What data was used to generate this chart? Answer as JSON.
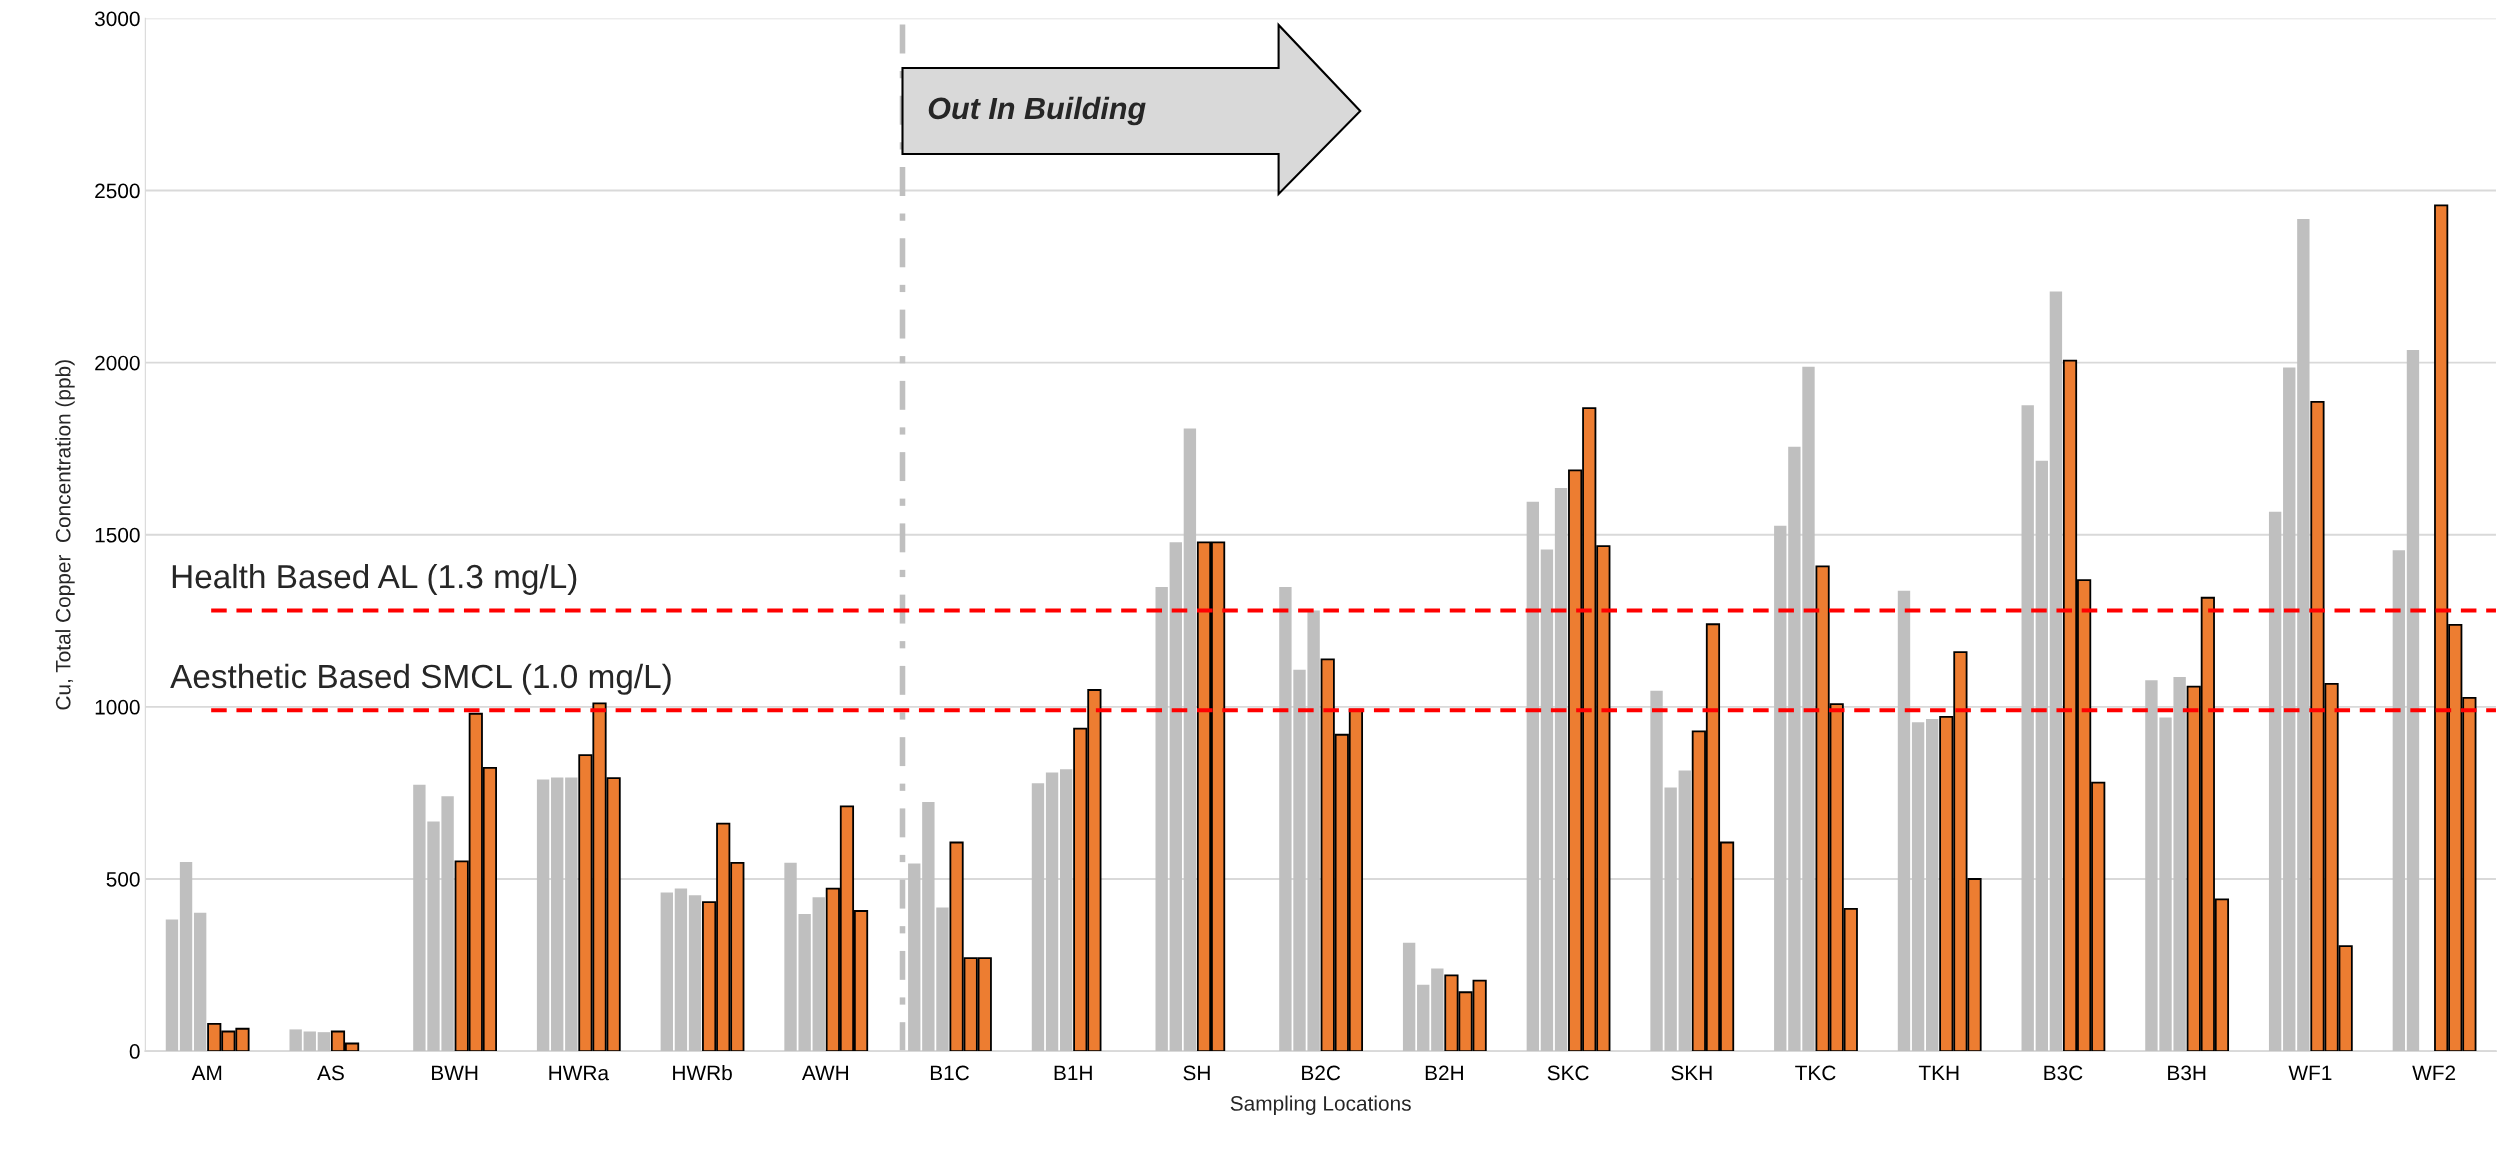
{
  "chart_data": {
    "type": "bar",
    "xlabel": "Sampling Locations",
    "ylabel": "Cu, Total Copper  Concentration (ppb)",
    "categories": [
      "AM",
      "AS",
      "BWH",
      "HWRa",
      "HWRb",
      "AWH",
      "B1C",
      "B1H",
      "SH",
      "B2C",
      "B2H",
      "SKC",
      "SKH",
      "TKC",
      "TKH",
      "B3C",
      "B3H",
      "WF1",
      "WF2"
    ],
    "series": [
      {
        "color": "#bfbfbf",
        "values": [
          382,
          63,
          774,
          789,
          461,
          547,
          545,
          778,
          1348,
          1348,
          315,
          1596,
          1047,
          1526,
          1337,
          1876,
          1077,
          1567,
          1455
        ]
      },
      {
        "color": "#bfbfbf",
        "values": [
          549,
          57,
          667,
          795,
          472,
          398,
          724,
          809,
          1478,
          1108,
          193,
          1457,
          766,
          1756,
          955,
          1715,
          969,
          1986,
          2037
        ]
      },
      {
        "color": "#bfbfbf",
        "values": [
          402,
          55,
          740,
          795,
          453,
          447,
          417,
          819,
          1809,
          1280,
          240,
          1636,
          815,
          1988,
          965,
          2207,
          1087,
          2417,
          null
        ]
      },
      {
        "color": "#ed7d31",
        "values": [
          79,
          57,
          551,
          860,
          433,
          472,
          606,
          937,
          1478,
          1138,
          220,
          1687,
          929,
          1408,
          971,
          2006,
          1059,
          1886,
          2457
        ]
      },
      {
        "color": "#ed7d31",
        "values": [
          57,
          22,
          980,
          1010,
          661,
          711,
          270,
          1049,
          1478,
          919,
          171,
          1868,
          1240,
          1008,
          1159,
          1368,
          1317,
          1067,
          1238
        ]
      },
      {
        "color": "#ed7d31",
        "values": [
          65,
          null,
          823,
          793,
          547,
          407,
          270,
          null,
          null,
          992,
          205,
          1467,
          606,
          413,
          500,
          780,
          441,
          305,
          1026
        ]
      }
    ],
    "ylim": [
      0,
      3000
    ],
    "yticks": [
      0,
      500,
      1000,
      1500,
      2000,
      2500,
      3000
    ],
    "grid": "y",
    "legend": false,
    "ref_lines": [
      {
        "axis": "y",
        "value": 1280,
        "label": "Health Based AL (1.3 mg/L)",
        "color": "#ff0000",
        "line_style": "dashed"
      },
      {
        "axis": "y",
        "value": 990,
        "label": "Aesthetic Based SMCL (1.0 mg/L)",
        "color": "#ff0000",
        "line_style": "dashed"
      }
    ],
    "annotations": [
      "Out In Building"
    ]
  }
}
